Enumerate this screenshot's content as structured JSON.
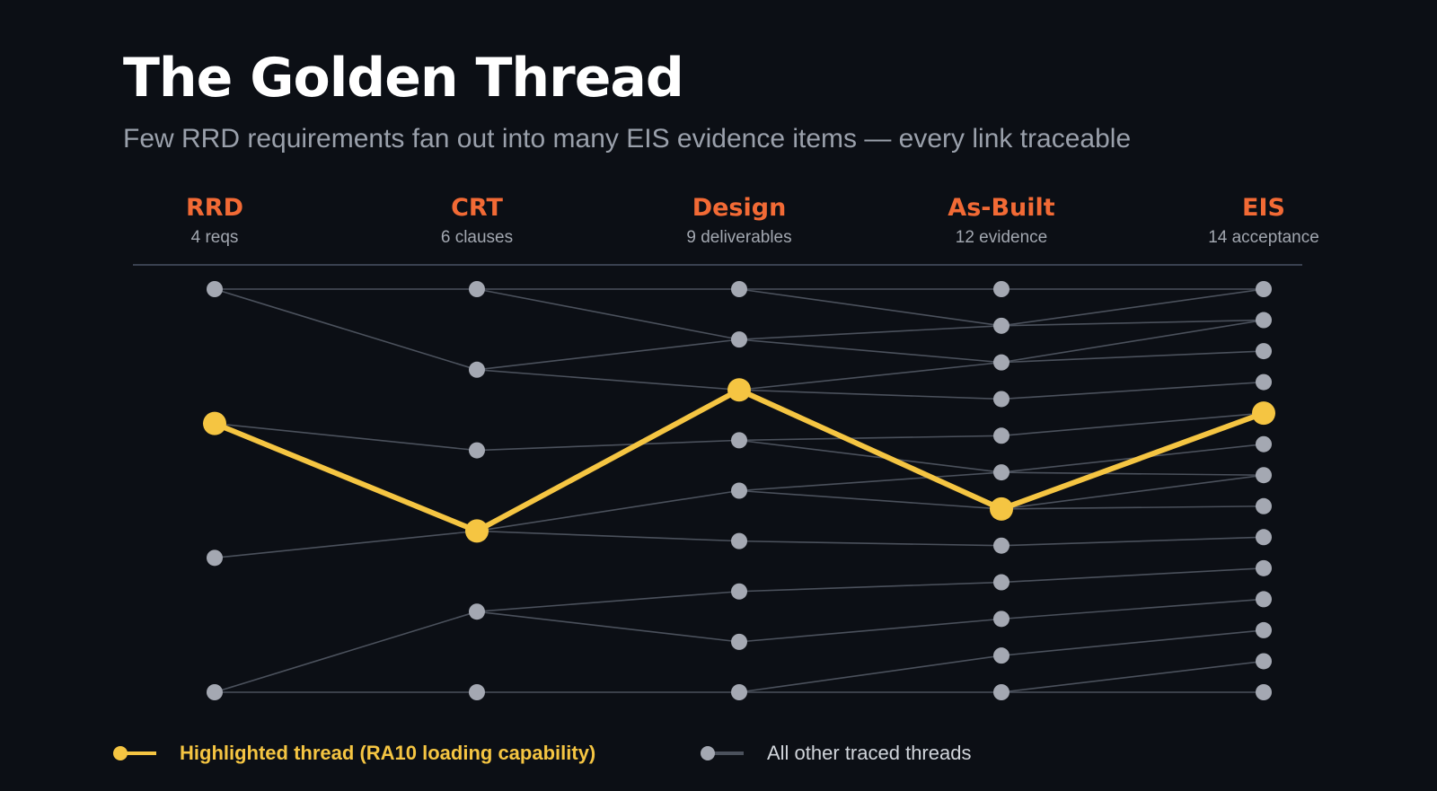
{
  "title": "The Golden Thread",
  "subtitle": "Few RRD requirements fan out into many EIS evidence items — every link traceable",
  "stages": [
    {
      "name": "RRD",
      "sub": "4 reqs",
      "count": 4
    },
    {
      "name": "CRT",
      "sub": "6 clauses",
      "count": 6
    },
    {
      "name": "Design",
      "sub": "9 deliverables",
      "count": 9
    },
    {
      "name": "As-Built",
      "sub": "12 evidence",
      "count": 12
    },
    {
      "name": "EIS",
      "sub": "14 acceptance",
      "count": 14
    }
  ],
  "links": [
    [
      [
        0,
        0
      ],
      [
        0,
        1
      ],
      [
        1,
        2
      ],
      [
        2,
        3
      ],
      [
        3,
        4
      ],
      [
        3,
        5
      ]
    ],
    [
      [
        0,
        0
      ],
      [
        0,
        1
      ],
      [
        1,
        1
      ],
      [
        1,
        2
      ],
      [
        2,
        3
      ],
      [
        3,
        4
      ],
      [
        3,
        5
      ],
      [
        4,
        6
      ],
      [
        4,
        7
      ],
      [
        5,
        8
      ]
    ],
    [
      [
        0,
        0
      ],
      [
        0,
        1
      ],
      [
        1,
        1
      ],
      [
        1,
        2
      ],
      [
        2,
        2
      ],
      [
        2,
        3
      ],
      [
        3,
        4
      ],
      [
        3,
        5
      ],
      [
        4,
        5
      ],
      [
        4,
        6
      ],
      [
        5,
        7
      ],
      [
        6,
        8
      ],
      [
        7,
        9
      ],
      [
        8,
        10
      ],
      [
        8,
        11
      ]
    ],
    [
      [
        0,
        0
      ],
      [
        1,
        0
      ],
      [
        1,
        1
      ],
      [
        2,
        1
      ],
      [
        2,
        2
      ],
      [
        3,
        3
      ],
      [
        4,
        4
      ],
      [
        5,
        5
      ],
      [
        5,
        6
      ],
      [
        6,
        6
      ],
      [
        6,
        7
      ],
      [
        7,
        8
      ],
      [
        8,
        9
      ],
      [
        9,
        10
      ],
      [
        10,
        11
      ],
      [
        11,
        12
      ],
      [
        11,
        13
      ]
    ]
  ],
  "highlight_path": [
    1,
    3,
    2,
    6,
    4
  ],
  "colors": {
    "background": "#0c0f15",
    "node": "#a4a8b2",
    "link": "#4b515c",
    "highlight": "#f5c542",
    "stage_title": "#f26a35"
  },
  "legend": {
    "highlight_label": "Highlighted thread (RA10 loading capability)",
    "other_label": "All other traced threads"
  }
}
